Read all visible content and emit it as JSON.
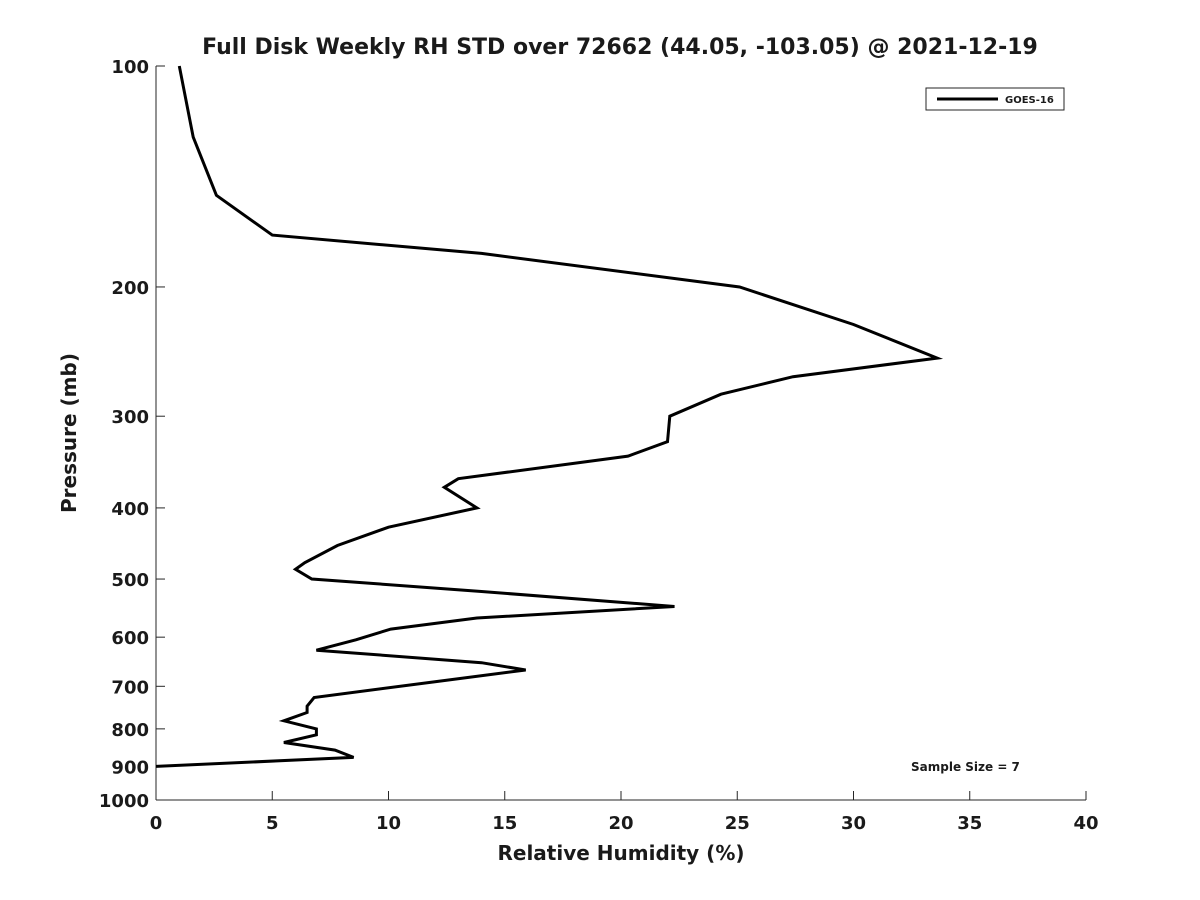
{
  "chart_data": {
    "type": "line",
    "title": "Full Disk Weekly RH STD over 72662 (44.05, -103.05) @ 2021-12-19",
    "xlabel": "Relative Humidity (%)",
    "ylabel": "Pressure (mb)",
    "xlim": [
      0,
      40
    ],
    "ylim": [
      100,
      1000
    ],
    "y_scale": "log",
    "y_reversed": true,
    "x_ticks": [
      0,
      5,
      10,
      15,
      20,
      25,
      30,
      35,
      40
    ],
    "y_ticks": [
      100,
      200,
      300,
      400,
      500,
      600,
      700,
      800,
      900,
      1000
    ],
    "grid": false,
    "legend_position": "top-right",
    "annotation": "Sample Size = 7",
    "series": [
      {
        "name": "GOES-16",
        "color": "#000000",
        "points": [
          {
            "x": 1.0,
            "y": 100
          },
          {
            "x": 1.6,
            "y": 125
          },
          {
            "x": 2.6,
            "y": 150
          },
          {
            "x": 5.0,
            "y": 170
          },
          {
            "x": 14.0,
            "y": 180
          },
          {
            "x": 25.1,
            "y": 200
          },
          {
            "x": 30.0,
            "y": 225
          },
          {
            "x": 33.6,
            "y": 250
          },
          {
            "x": 27.4,
            "y": 265
          },
          {
            "x": 24.3,
            "y": 280
          },
          {
            "x": 22.1,
            "y": 300
          },
          {
            "x": 22.0,
            "y": 325
          },
          {
            "x": 20.3,
            "y": 340
          },
          {
            "x": 13.0,
            "y": 365
          },
          {
            "x": 12.4,
            "y": 375
          },
          {
            "x": 13.8,
            "y": 400
          },
          {
            "x": 10.0,
            "y": 425
          },
          {
            "x": 7.8,
            "y": 450
          },
          {
            "x": 6.4,
            "y": 475
          },
          {
            "x": 6.0,
            "y": 485
          },
          {
            "x": 6.7,
            "y": 500
          },
          {
            "x": 14.0,
            "y": 520
          },
          {
            "x": 22.3,
            "y": 545
          },
          {
            "x": 13.8,
            "y": 565
          },
          {
            "x": 10.1,
            "y": 585
          },
          {
            "x": 8.6,
            "y": 605
          },
          {
            "x": 6.9,
            "y": 625
          },
          {
            "x": 14.0,
            "y": 650
          },
          {
            "x": 15.9,
            "y": 665
          },
          {
            "x": 12.0,
            "y": 690
          },
          {
            "x": 6.8,
            "y": 725
          },
          {
            "x": 6.5,
            "y": 745
          },
          {
            "x": 6.5,
            "y": 760
          },
          {
            "x": 5.5,
            "y": 780
          },
          {
            "x": 6.9,
            "y": 800
          },
          {
            "x": 6.9,
            "y": 815
          },
          {
            "x": 5.5,
            "y": 835
          },
          {
            "x": 7.7,
            "y": 855
          },
          {
            "x": 8.5,
            "y": 875
          },
          {
            "x": 0.0,
            "y": 900
          }
        ]
      }
    ]
  }
}
